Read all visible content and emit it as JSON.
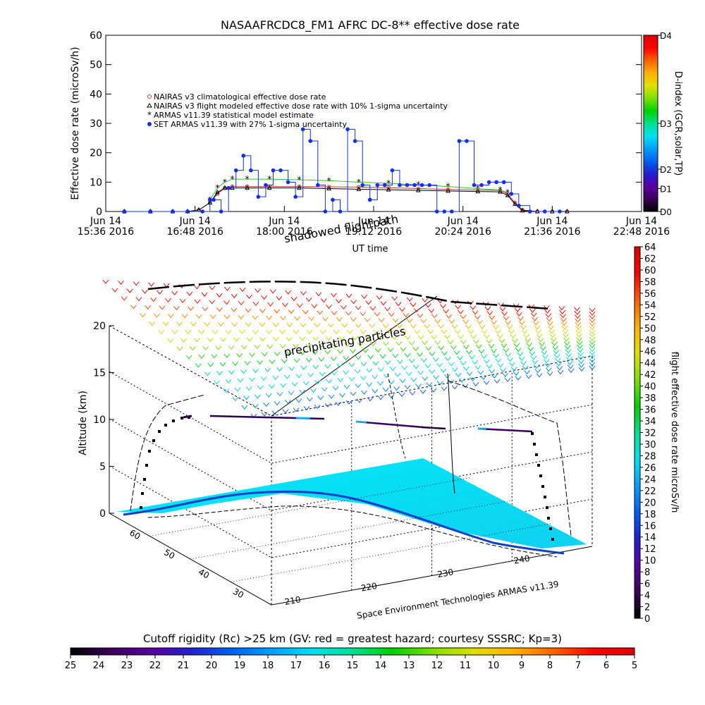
{
  "chart_data": [
    {
      "type": "scatter",
      "title": "NASAAFRCDC8_FM1 AFRC DC-8** effective dose rate",
      "ylabel": "Effective dose rate (microSv/h)",
      "xlabel": "UT time",
      "ylim": [
        0,
        60
      ],
      "yticks": [
        0,
        10,
        20,
        30,
        40,
        50,
        60
      ],
      "xlim_hours": [
        15.6,
        22.8
      ],
      "xticks": [
        {
          "h": 15.6,
          "l1": "Jun 14",
          "l2": "15:36 2016"
        },
        {
          "h": 16.8,
          "l1": "Jun 14",
          "l2": "16:48 2016"
        },
        {
          "h": 18.0,
          "l1": "Jun 14",
          "l2": "18:00 2016"
        },
        {
          "h": 19.2,
          "l1": "Jun 14",
          "l2": "19:12 2016"
        },
        {
          "h": 20.4,
          "l1": "Jun 14",
          "l2": "20:24 2016"
        },
        {
          "h": 21.6,
          "l1": "Jun 14",
          "l2": "21:36 2016"
        },
        {
          "h": 22.8,
          "l1": "Jun 14",
          "l2": "22:48 2016"
        }
      ],
      "legend_position": "upper-left",
      "series": [
        {
          "name": "NAIRAS v3 climatological effective dose rate",
          "color": "#d03030",
          "marker": "circle",
          "x": [
            15.85,
            16.2,
            16.5,
            16.7,
            16.85,
            17.0,
            17.1,
            17.2,
            17.3,
            17.5,
            17.8,
            18.2,
            18.6,
            19.0,
            19.4,
            19.8,
            20.2,
            20.6,
            20.9,
            21.0,
            21.1,
            21.2,
            21.4,
            21.6,
            21.8
          ],
          "y": [
            0,
            0,
            0,
            0,
            0.5,
            3,
            6,
            8,
            8.5,
            8.5,
            8.5,
            8.5,
            8.4,
            8.3,
            8.1,
            7.8,
            7.5,
            7.3,
            7.2,
            6,
            3,
            0.5,
            0,
            0,
            0
          ]
        },
        {
          "name": "NAIRAS v3 flight modeled effective dose rate with 10% 1-sigma uncertainty",
          "color": "#000000",
          "marker": "triangle",
          "x": [
            15.85,
            16.2,
            16.5,
            16.7,
            16.85,
            17.0,
            17.1,
            17.2,
            17.3,
            17.5,
            17.8,
            18.2,
            18.6,
            19.0,
            19.4,
            19.8,
            20.2,
            20.6,
            20.9,
            21.0,
            21.1,
            21.2,
            21.4,
            21.6,
            21.8
          ],
          "y": [
            0,
            0,
            0,
            0,
            0.5,
            3,
            6.5,
            8,
            8,
            8,
            8,
            8,
            7.8,
            7.6,
            7.4,
            7.2,
            7,
            6.8,
            6.7,
            5.5,
            2.5,
            0.3,
            0,
            0,
            0
          ]
        },
        {
          "name": "ARMAS v11.39 statistical model estimate",
          "color": "#22cc22",
          "marker": "asterisk",
          "x": [
            17.0,
            17.1,
            17.2,
            17.3,
            17.5,
            17.8,
            18.2,
            18.6,
            19.0,
            19.4,
            19.8,
            20.2,
            20.6,
            20.9,
            21.0
          ],
          "y": [
            4,
            8,
            10,
            11,
            11,
            11,
            10.8,
            10.5,
            10,
            9.6,
            9.1,
            8.5,
            7.8,
            7.3,
            6.5
          ]
        },
        {
          "name": "SET ARMAS v11.39 with 27% 1-sigma uncertainty",
          "color": "#1030ee",
          "marker": "dot",
          "x": [
            15.85,
            16.2,
            16.5,
            16.7,
            16.9,
            17.0,
            17.05,
            17.15,
            17.25,
            17.35,
            17.45,
            17.55,
            17.65,
            17.75,
            17.85,
            17.95,
            18.05,
            18.15,
            18.25,
            18.35,
            18.45,
            18.55,
            18.65,
            18.75,
            18.85,
            18.95,
            19.05,
            19.15,
            19.25,
            19.35,
            19.45,
            19.55,
            19.65,
            19.75,
            19.85,
            19.95,
            20.05,
            20.15,
            20.25,
            20.35,
            20.45,
            20.55,
            20.65,
            20.75,
            20.85,
            20.95,
            21.05,
            21.15,
            21.3,
            21.5,
            21.7
          ],
          "y": [
            0,
            0,
            0,
            0,
            0,
            4,
            4,
            0,
            8,
            14,
            19,
            14,
            5,
            9,
            14,
            14,
            10,
            5,
            28,
            24,
            9,
            0,
            4,
            0,
            28,
            24,
            9,
            4,
            9,
            9,
            14,
            9,
            9,
            9,
            9,
            9,
            0,
            0,
            0,
            24,
            24,
            9,
            9,
            10,
            10,
            10,
            6,
            2,
            0,
            0,
            0
          ]
        }
      ]
    },
    {
      "type": "scatter",
      "ylabel": "Altitude (km)",
      "zticks": [
        0,
        5,
        10,
        15,
        20
      ],
      "lat_ticks": [
        "30",
        "40",
        "50",
        "60"
      ],
      "lon_ticks": [
        "210",
        "220",
        "230",
        "240"
      ],
      "annotations": [
        "shadowed flightpath",
        "precipitating particles"
      ],
      "credit": "Space Environment Technologies ARMAS v11.39",
      "right_colorbar": {
        "label": "flight effective dose rate microSv/h",
        "min": 0,
        "max": 64,
        "ticks": [
          0,
          2,
          4,
          6,
          8,
          10,
          12,
          14,
          16,
          18,
          20,
          22,
          24,
          26,
          28,
          30,
          32,
          34,
          36,
          38,
          40,
          42,
          44,
          46,
          48,
          50,
          52,
          54,
          56,
          58,
          60,
          62,
          64
        ]
      }
    },
    {
      "type": "heatmap",
      "title": "Cutoff rigidity (Rc) >25 km (GV: red = greatest hazard; courtesy SSSRC; Kp=3)",
      "ticks": [
        25,
        24,
        23,
        22,
        21,
        20,
        19,
        18,
        17,
        16,
        15,
        14,
        13,
        12,
        11,
        10,
        9,
        8,
        7,
        6,
        5
      ]
    }
  ],
  "dindex_bar": {
    "label": "D-index (GCR,solar,TP)",
    "ticks": [
      {
        "label": "D0",
        "v": 0
      },
      {
        "label": "D1",
        "v": 0.13
      },
      {
        "label": "D2",
        "v": 0.24
      },
      {
        "label": "D3",
        "v": 0.5
      },
      {
        "label": "D4",
        "v": 1
      }
    ]
  },
  "palette": [
    "#000000",
    "#3c0058",
    "#5a00a0",
    "#2020d0",
    "#0060f0",
    "#00a0ff",
    "#00e0f0",
    "#00e090",
    "#00d000",
    "#80e000",
    "#e0e000",
    "#ffb000",
    "#ff6000",
    "#ff0000",
    "#dd0000"
  ]
}
